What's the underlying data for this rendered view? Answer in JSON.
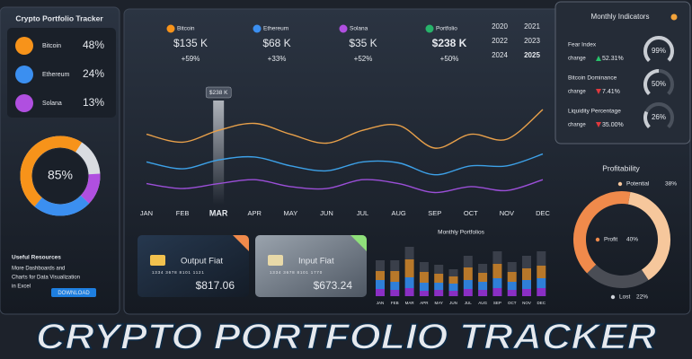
{
  "sidebar": {
    "title": "Crypto Portfolio Tracker",
    "holdings": [
      {
        "name": "Bitcoin",
        "share": 48,
        "share_label": "48%",
        "color": "#f7931a"
      },
      {
        "name": "Ethereum",
        "share": 24,
        "share_label": "24%",
        "color": "#3b8ff0"
      },
      {
        "name": "Solana",
        "share": 13,
        "share_label": "13%",
        "color": "#b04fe0"
      }
    ],
    "total": 85,
    "total_label": "85%",
    "resources": {
      "title": "Useful Resources",
      "lines": [
        "More Dashboards and",
        "Charts for Data Visualization",
        "in Excel"
      ],
      "button": "DOWNLOAD"
    }
  },
  "summary": [
    {
      "name": "Bitcoin",
      "value": "$135 K",
      "change": "+59%",
      "color": "#f7931a"
    },
    {
      "name": "Ethereum",
      "value": "$68 K",
      "change": "+33%",
      "color": "#3b8ff0"
    },
    {
      "name": "Solana",
      "value": "$35 K",
      "change": "+52%",
      "color": "#b04fe0"
    },
    {
      "name": "Portfolio",
      "value": "$238 K",
      "change": "+50%",
      "color": "#27b36a"
    }
  ],
  "years": [
    2020,
    2021,
    2022,
    2023,
    2024,
    2025
  ],
  "selected_year": 2025,
  "line_chart": {
    "type": "line",
    "categories": [
      "JAN",
      "FEB",
      "MAR",
      "APR",
      "MAY",
      "JUN",
      "JUL",
      "AUG",
      "SEP",
      "OCT",
      "NOV",
      "DEC"
    ],
    "selected": "MAR",
    "tooltip": "$238 K",
    "ylim": [
      0,
      100
    ],
    "series": [
      {
        "color": "#e8a04a",
        "values": [
          64,
          56,
          68,
          75,
          64,
          55,
          68,
          73,
          50,
          64,
          59,
          89
        ]
      },
      {
        "color": "#3da1e8",
        "values": [
          36,
          29,
          38,
          41,
          32,
          27,
          36,
          35,
          23,
          32,
          32,
          44
        ]
      },
      {
        "color": "#9b4fd8",
        "values": [
          14,
          9,
          14,
          18,
          11,
          9,
          18,
          14,
          5,
          11,
          7,
          18
        ]
      }
    ]
  },
  "cards": [
    {
      "title": "Output Fiat",
      "number": "1334 3678 8101 1121",
      "amount": "$817.06"
    },
    {
      "title": "Input Fiat",
      "number": "1334 3678 8101 1770",
      "amount": "$673.24"
    }
  ],
  "bar_chart": {
    "type": "bar",
    "stacked": true,
    "title": "Monthly Portfolios",
    "categories": [
      "JAN",
      "FEB",
      "MAR",
      "APR",
      "MAY",
      "JUN",
      "JUL",
      "AUG",
      "SEP",
      "OCT",
      "NOV",
      "DEC"
    ],
    "ylim": [
      0,
      60
    ],
    "series": [
      {
        "color": "#8a2fc4",
        "values": [
          8,
          7,
          9,
          6,
          7,
          6,
          8,
          7,
          9,
          7,
          8,
          9
        ]
      },
      {
        "color": "#2f7fd8",
        "values": [
          10,
          9,
          12,
          9,
          8,
          8,
          10,
          9,
          11,
          9,
          10,
          11
        ]
      },
      {
        "color": "#b8782a",
        "values": [
          10,
          12,
          20,
          12,
          10,
          8,
          14,
          10,
          16,
          11,
          13,
          14
        ]
      },
      {
        "color": "#3a3f4a",
        "values": [
          12,
          12,
          14,
          11,
          10,
          8,
          13,
          10,
          14,
          11,
          14,
          16
        ]
      }
    ]
  },
  "indicators": {
    "title": "Monthly Indicators",
    "change_label": "change",
    "items": [
      {
        "name": "Fear Index",
        "value": 99,
        "value_label": "99%",
        "change": "52.31%",
        "direction": "up"
      },
      {
        "name": "Bitcoin Dominance",
        "value": 50,
        "value_label": "50%",
        "change": "7.41%",
        "direction": "down"
      },
      {
        "name": "Liquidity Percentage",
        "value": 26,
        "value_label": "26%",
        "change": "35.00%",
        "direction": "down"
      }
    ]
  },
  "profitability": {
    "type": "pie",
    "title": "Profitability",
    "categories": [
      "Potential",
      "Profit",
      "Lost"
    ],
    "values": [
      38,
      40,
      22
    ],
    "value_labels": [
      "38%",
      "40%",
      "22%"
    ],
    "colors": [
      "#f6c79c",
      "#f08a4b",
      "#4a4d55"
    ]
  },
  "banner": "CRYPTO PORTFOLIO TRACKER"
}
